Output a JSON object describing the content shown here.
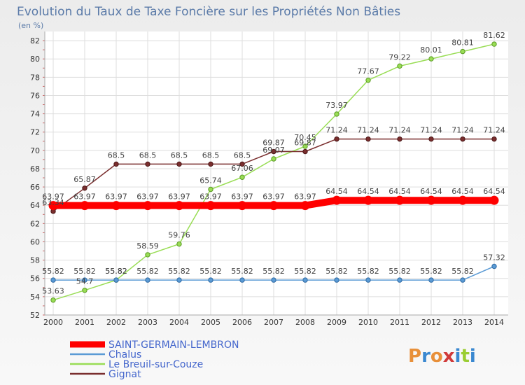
{
  "chart_data": {
    "type": "line",
    "title": "Evolution du Taux de Taxe Foncière sur les Propriétés Non Bâties",
    "ylabel": "(en %)",
    "xlabel": "",
    "x": [
      "2000",
      "2001",
      "2002",
      "2003",
      "2004",
      "2005",
      "2006",
      "2007",
      "2008",
      "2009",
      "2010",
      "2011",
      "2012",
      "2013",
      "2014"
    ],
    "ylim": [
      52,
      83
    ],
    "yticks": [
      52,
      54,
      56,
      58,
      60,
      62,
      64,
      66,
      68,
      70,
      72,
      74,
      76,
      78,
      80,
      82
    ],
    "grid": true,
    "legend_position": "bottom-left",
    "series": [
      {
        "name": "SAINT-GERMAIN-LEMBRON",
        "color": "#ff0000",
        "values": [
          63.97,
          63.97,
          63.97,
          63.97,
          63.97,
          63.97,
          63.97,
          63.97,
          63.97,
          64.54,
          64.54,
          64.54,
          64.54,
          64.54,
          64.54
        ],
        "labels": [
          "63.97",
          "63.97",
          "63.97",
          "63.97",
          "63.97",
          "63.97",
          "63.97",
          "63.97",
          "63.97",
          "64.54",
          "64.54",
          "64.54",
          "64.54",
          "64.54",
          "64.54"
        ]
      },
      {
        "name": "Chalus",
        "color": "#5b9bd5",
        "values": [
          55.82,
          55.82,
          55.82,
          55.82,
          55.82,
          55.82,
          55.82,
          55.82,
          55.82,
          55.82,
          55.82,
          55.82,
          55.82,
          55.82,
          57.32
        ],
        "labels": [
          "55.82",
          "55.82",
          "55.82",
          "55.82",
          "55.82",
          "55.82",
          "55.82",
          "55.82",
          "55.82",
          "55.82",
          "55.82",
          "55.82",
          "55.82",
          "55.82",
          "57.32"
        ]
      },
      {
        "name": "Le Breuil-sur-Couze",
        "color": "#99dd55",
        "values": [
          53.63,
          54.7,
          55.82,
          58.59,
          59.76,
          65.74,
          67.06,
          69.07,
          70.45,
          73.97,
          77.67,
          79.22,
          80.01,
          80.81,
          81.62
        ],
        "labels": [
          "53.63",
          "54.7",
          "55.82",
          "58.59",
          "59.76",
          "65.74",
          "67.06",
          "69.07",
          "70.45",
          "73.97",
          "77.67",
          "79.22",
          "80.01",
          "80.81",
          "81.62"
        ]
      },
      {
        "name": "Gignat",
        "color": "#7a2e2e",
        "values": [
          63.34,
          65.87,
          68.5,
          68.5,
          68.5,
          68.5,
          68.5,
          69.87,
          69.87,
          71.24,
          71.24,
          71.24,
          71.24,
          71.24,
          71.24
        ],
        "labels": [
          "63.34",
          "65.87",
          "68.5",
          "68.5",
          "68.5",
          "68.5",
          "68.5",
          "69.87",
          "69.87",
          "71.24",
          "71.24",
          "71.24",
          "71.24",
          "71.24",
          "71.24"
        ]
      }
    ]
  },
  "watermark": {
    "text": "Proxiti"
  }
}
